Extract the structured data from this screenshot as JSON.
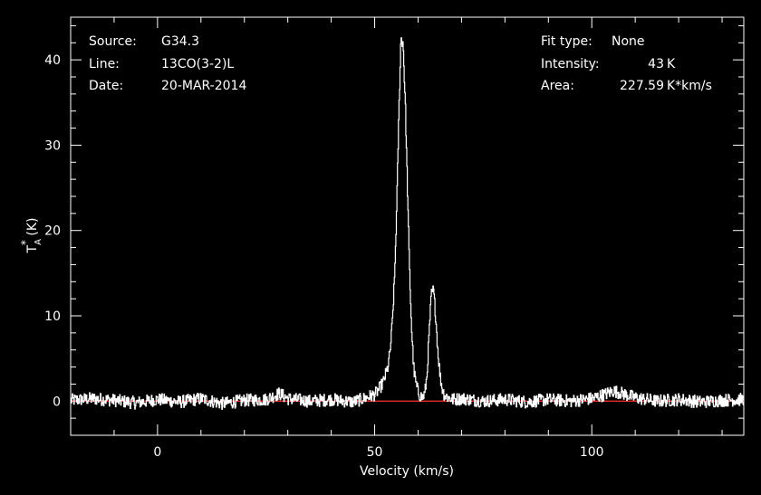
{
  "info_left": [
    {
      "key": "Source:",
      "value": "G34.3"
    },
    {
      "key": "Line:",
      "value": "13CO(3-2)L"
    },
    {
      "key": "Date:",
      "value": "20-MAR-2014"
    }
  ],
  "info_right": [
    {
      "key": "Fit type:",
      "value": "None"
    },
    {
      "key": "Intensity:",
      "value": "43",
      "unit": "K"
    },
    {
      "key": "Area:",
      "value": "227.59",
      "unit": "K*km/s"
    }
  ],
  "chart_data": {
    "type": "line",
    "title": "",
    "xlabel": "Velocity (km/s)",
    "ylabel": "T*A (K)",
    "ylabel_parts": {
      "main": "T",
      "sup": "*",
      "sub": "A",
      "unit": " (K)"
    },
    "xlim": [
      -20,
      135
    ],
    "ylim": [
      -4,
      45
    ],
    "xticks": [
      {
        "value": 0,
        "label": "0"
      },
      {
        "value": 50,
        "label": "50"
      },
      {
        "value": 100,
        "label": "100"
      }
    ],
    "yticks": [
      {
        "value": 0,
        "label": "0"
      },
      {
        "value": 10,
        "label": "10"
      },
      {
        "value": 20,
        "label": "20"
      },
      {
        "value": 30,
        "label": "30"
      },
      {
        "value": 40,
        "label": "40"
      }
    ],
    "grid": false,
    "baseline": {
      "y": 0,
      "color": "#ff3030"
    },
    "series": [
      {
        "color": "#ffffff",
        "x": [
          -20,
          -15,
          -10,
          -5,
          0,
          5,
          10,
          15,
          20,
          25,
          28,
          30,
          35,
          40,
          45,
          48,
          50,
          51,
          52,
          53,
          53.5,
          54,
          54.5,
          55,
          55.5,
          56,
          56.5,
          57,
          57.5,
          58,
          58.5,
          59,
          59.5,
          60,
          60.5,
          61,
          61.5,
          62,
          62.5,
          63,
          63.5,
          64,
          64.5,
          65,
          65.5,
          66,
          67,
          68,
          70,
          75,
          80,
          85,
          90,
          95,
          100,
          103,
          105,
          107,
          110,
          115,
          120,
          125,
          130,
          135
        ],
        "y": [
          0.1,
          0.3,
          0.1,
          -0.2,
          0.2,
          -0.1,
          0.3,
          -0.3,
          0.1,
          0.2,
          0.9,
          0.3,
          0.0,
          0.2,
          -0.1,
          0.4,
          0.8,
          1.4,
          2.3,
          4.0,
          5.8,
          9.0,
          14.0,
          22.0,
          33.0,
          42.5,
          42.0,
          35.0,
          25.0,
          15.0,
          8.0,
          3.5,
          2.0,
          1.0,
          0.6,
          0.4,
          0.9,
          3.0,
          8.0,
          12.5,
          13.0,
          10.0,
          6.0,
          3.0,
          1.5,
          0.7,
          0.4,
          0.2,
          0.3,
          0.0,
          0.2,
          -0.1,
          0.2,
          0.0,
          0.3,
          0.8,
          1.2,
          0.9,
          0.4,
          0.0,
          0.2,
          -0.1,
          0.1,
          0.2
        ]
      }
    ]
  }
}
